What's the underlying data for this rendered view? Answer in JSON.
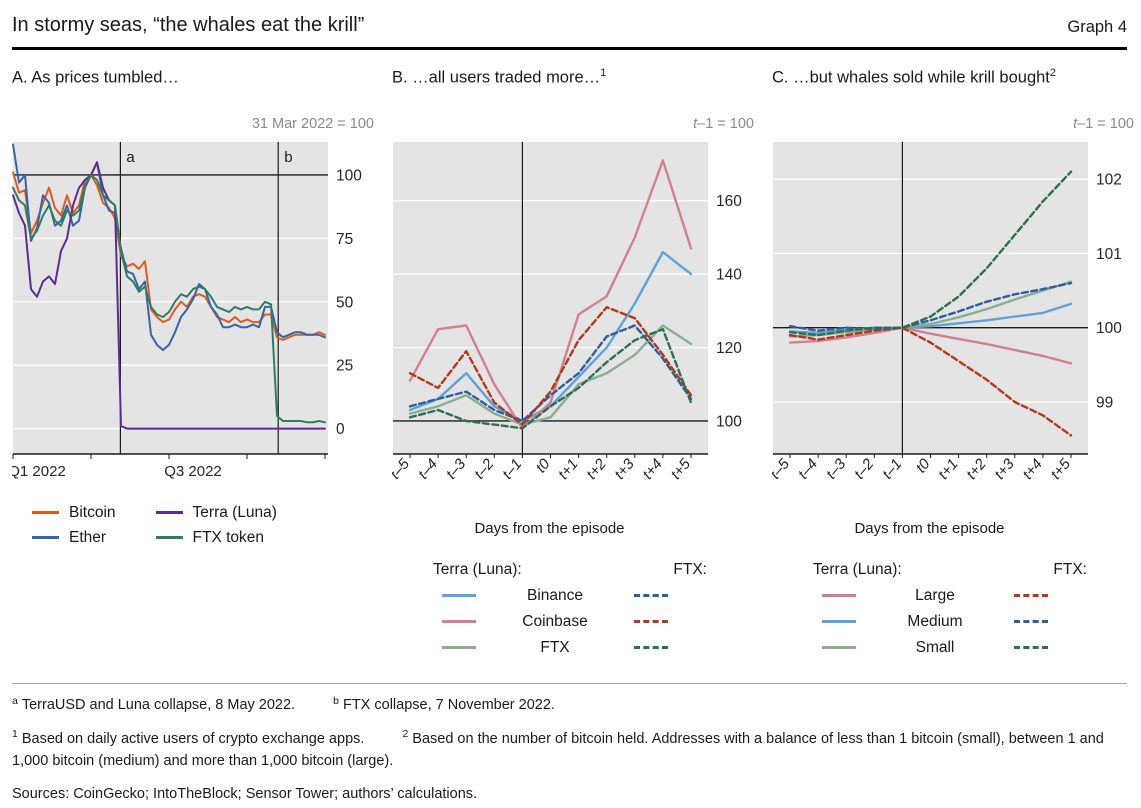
{
  "header": {
    "title": "In stormy seas, “the whales eat the krill”",
    "graph_label": "Graph 4"
  },
  "colors": {
    "plot_bg": "#e4e4e4",
    "grid": "#ffffff",
    "axis": "#1a1a1a",
    "tick_text": "#262626",
    "note_text": "#8a8a8a"
  },
  "panels": [
    {
      "title": "A. As prices tumbled…",
      "title_sup": "",
      "note_italic": "",
      "note_text": "31 Mar 2022 = 100"
    },
    {
      "title": "B. …all users traded more…",
      "title_sup": "1",
      "note_italic": "t",
      "note_text": "–1 = 100",
      "xlabel": "Days from the episode",
      "legend": {
        "group1": "Terra (Luna):",
        "group2": "FTX:"
      }
    },
    {
      "title": "C. …but whales sold while krill bought",
      "title_sup": "2",
      "note_italic": "t",
      "note_text": "–1 = 100",
      "xlabel": "Days from the episode",
      "legend": {
        "group1": "Terra (Luna):",
        "group2": "FTX:"
      }
    }
  ],
  "chart_data": [
    {
      "type": "line",
      "title": "A. As prices tumbled…",
      "index_note": "31 Mar 2022 = 100",
      "x_unit": "weeks from 1 Jan 2022",
      "xlim": [
        0,
        52.5
      ],
      "ylim": [
        -10,
        113
      ],
      "y_ticks": [
        0,
        25,
        50,
        75,
        100
      ],
      "baseline": 100,
      "x_tick_marks": [
        0,
        13,
        26,
        39,
        52
      ],
      "x_ticks": [
        {
          "pos": 4,
          "label": "Q1 2022"
        },
        {
          "pos": 30,
          "label": "Q3 2022"
        }
      ],
      "events": [
        {
          "x": 17.9,
          "label": "a"
        },
        {
          "x": 44.2,
          "label": "b"
        }
      ],
      "series": [
        {
          "name": "Bitcoin",
          "color": "#dd5b21",
          "dash": false,
          "values": [
            101,
            93,
            94,
            77,
            82,
            89,
            95,
            87,
            84,
            92,
            85,
            88,
            98,
            100,
            96,
            89,
            87,
            83,
            68,
            64,
            65,
            63,
            66,
            47,
            44,
            42,
            43,
            47,
            50,
            48,
            52,
            53,
            52,
            48,
            44,
            43,
            42,
            44,
            42,
            43,
            42,
            42,
            45,
            45,
            36,
            35,
            36,
            37,
            37,
            37,
            37,
            38,
            37
          ]
        },
        {
          "name": "Ether",
          "color": "#3465a8",
          "dash": false,
          "values": [
            112,
            97,
            100,
            74,
            79,
            92,
            89,
            80,
            82,
            88,
            80,
            82,
            95,
            100,
            105,
            92,
            86,
            85,
            71,
            62,
            61,
            55,
            58,
            37,
            33,
            31,
            33,
            38,
            44,
            47,
            51,
            57,
            55,
            48,
            45,
            40,
            40,
            41,
            40,
            40,
            41,
            40,
            48,
            48,
            38,
            36,
            37,
            38,
            38,
            37,
            37,
            37,
            36
          ]
        },
        {
          "name": "Terra (Luna)",
          "color": "#5e2b8f",
          "dash": false,
          "values": [
            92,
            85,
            80,
            55,
            52,
            58,
            60,
            57,
            70,
            75,
            88,
            95,
            98,
            100,
            105,
            95,
            90,
            88,
            1,
            0,
            0,
            0,
            0,
            0,
            0,
            0,
            0,
            0,
            0,
            0,
            0,
            0,
            0,
            0,
            0,
            0,
            0,
            0,
            0,
            0,
            0,
            0,
            0,
            0,
            0,
            0,
            0,
            0,
            0,
            0,
            0,
            0,
            0
          ]
        },
        {
          "name": "FTX token",
          "color": "#2f7d5e",
          "dash": false,
          "values": [
            95,
            90,
            88,
            75,
            78,
            84,
            88,
            82,
            80,
            86,
            84,
            86,
            96,
            100,
            98,
            92,
            90,
            88,
            70,
            60,
            58,
            54,
            56,
            48,
            45,
            44,
            46,
            50,
            53,
            52,
            55,
            56,
            55,
            52,
            48,
            47,
            46,
            48,
            47,
            48,
            47,
            47,
            50,
            49,
            5,
            3,
            3,
            3,
            3,
            2.5,
            2.5,
            3,
            2.5
          ]
        }
      ]
    },
    {
      "type": "line",
      "title": "B. …all users traded more…",
      "index_note": "t–1 = 100",
      "xlabel": "Days from the episode",
      "x_categories": [
        "t–5",
        "t–4",
        "t–3",
        "t–2",
        "t–1",
        "t0",
        "t+1",
        "t+2",
        "t+3",
        "t+4",
        "t+5"
      ],
      "ylim": [
        91,
        176
      ],
      "y_ticks": [
        100,
        120,
        140,
        160
      ],
      "baseline": 100,
      "vline_at_category": "t–1",
      "series": [
        {
          "group": "Terra (Luna)",
          "name": "Binance",
          "color": "#5da2d8",
          "dash": false,
          "values": [
            103,
            106,
            113,
            104,
            100,
            104,
            112,
            120,
            132,
            146,
            140
          ]
        },
        {
          "group": "Terra (Luna)",
          "name": "Coinbase",
          "color": "#d27f93",
          "dash": false,
          "values": [
            111,
            125,
            126,
            110,
            98,
            105,
            129,
            134,
            150,
            171,
            147
          ]
        },
        {
          "group": "Terra (Luna)",
          "name": "FTX",
          "color": "#8aad90",
          "dash": false,
          "values": [
            102,
            104,
            107,
            102,
            99,
            101,
            110,
            113,
            118,
            126,
            121
          ]
        },
        {
          "group": "FTX",
          "name": "Binance",
          "color": "#2d5f9e",
          "dash": true,
          "values": [
            104,
            106,
            108,
            103,
            100,
            107,
            113,
            123,
            126,
            117,
            106
          ]
        },
        {
          "group": "FTX",
          "name": "Coinbase",
          "color": "#b0391f",
          "dash": true,
          "values": [
            113,
            109,
            119,
            105,
            99,
            108,
            122,
            131,
            128,
            118,
            107
          ]
        },
        {
          "group": "FTX",
          "name": "FTX",
          "color": "#2f6e52",
          "dash": true,
          "values": [
            101,
            103,
            100,
            99,
            98,
            104,
            109,
            116,
            122,
            125,
            105
          ]
        }
      ]
    },
    {
      "type": "line",
      "title": "C. …but whales sold while krill bought",
      "index_note": "t–1 = 100",
      "xlabel": "Days from the episode",
      "x_categories": [
        "t–5",
        "t–4",
        "t–3",
        "t–2",
        "t–1",
        "t0",
        "t+1",
        "t+2",
        "t+3",
        "t+4",
        "t+5"
      ],
      "ylim": [
        98.3,
        102.5
      ],
      "y_ticks": [
        99,
        100,
        101,
        102
      ],
      "baseline": 100,
      "vline_at_category": "t–1",
      "series": [
        {
          "group": "Terra (Luna)",
          "name": "Large",
          "color": "#d27f93",
          "dash": false,
          "values": [
            99.8,
            99.82,
            99.87,
            99.93,
            100,
            99.92,
            99.85,
            99.78,
            99.7,
            99.62,
            99.52
          ]
        },
        {
          "group": "Terra (Luna)",
          "name": "Medium",
          "color": "#5da2d8",
          "dash": false,
          "values": [
            99.95,
            99.93,
            99.97,
            100.0,
            100,
            100.02,
            100.06,
            100.1,
            100.15,
            100.2,
            100.32
          ]
        },
        {
          "group": "Terra (Luna)",
          "name": "Small",
          "color": "#8aad90",
          "dash": false,
          "values": [
            99.88,
            99.9,
            99.94,
            99.97,
            100,
            100.05,
            100.14,
            100.25,
            100.38,
            100.5,
            100.62
          ]
        },
        {
          "group": "FTX",
          "name": "Large",
          "color": "#b0391f",
          "dash": true,
          "values": [
            99.9,
            99.84,
            99.9,
            99.96,
            100,
            99.8,
            99.55,
            99.3,
            99.0,
            98.82,
            98.55
          ]
        },
        {
          "group": "FTX",
          "name": "Medium",
          "color": "#2d5f9e",
          "dash": true,
          "values": [
            100.02,
            99.96,
            100.0,
            99.98,
            100,
            100.1,
            100.22,
            100.35,
            100.45,
            100.52,
            100.6
          ]
        },
        {
          "group": "FTX",
          "name": "Small",
          "color": "#2f6e52",
          "dash": true,
          "values": [
            99.94,
            99.9,
            99.96,
            100.0,
            100,
            100.15,
            100.42,
            100.8,
            101.25,
            101.7,
            102.1
          ]
        }
      ]
    }
  ],
  "footnotes": {
    "ab": [
      {
        "sup": "a",
        "text": "TerraUSD and Luna collapse, 8 May 2022."
      },
      {
        "sup": "b",
        "text": "FTX collapse, 7 November 2022."
      }
    ],
    "notes12": [
      {
        "sup": "1",
        "text": "Based on daily active users of crypto exchange apps."
      },
      {
        "sup": "2",
        "text": "Based on the number of bitcoin held. Addresses with a balance of less than 1 bitcoin (small), between 1 and 1,000 bitcoin (medium) and more than 1,000 bitcoin (large)."
      }
    ],
    "sources": "Sources: CoinGecko; IntoTheBlock; Sensor Tower; authors’ calculations."
  }
}
